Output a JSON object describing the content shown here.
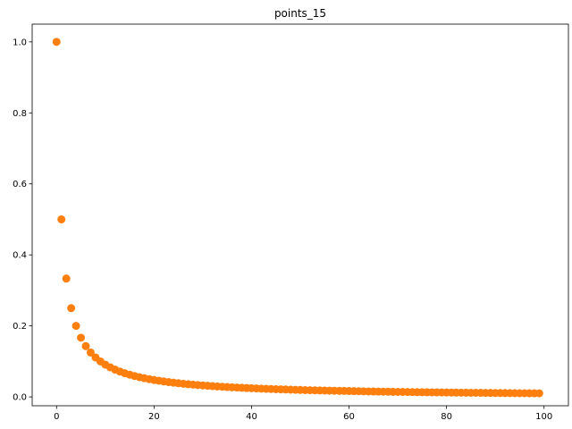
{
  "chart_data": {
    "type": "scatter",
    "title": "points_15",
    "xlabel": "",
    "ylabel": "",
    "xlim": [
      -5,
      105
    ],
    "ylim": [
      -0.025,
      1.05
    ],
    "xticks": [
      0,
      20,
      40,
      60,
      80,
      100
    ],
    "yticks": [
      0.0,
      0.2,
      0.4,
      0.6,
      0.8,
      1.0
    ],
    "xtick_labels": [
      "0",
      "20",
      "40",
      "60",
      "80",
      "100"
    ],
    "ytick_labels": [
      "0.0",
      "0.2",
      "0.4",
      "0.6",
      "0.8",
      "1.0"
    ],
    "grid": false,
    "legend": false,
    "series": [
      {
        "color": "#ff7f0e",
        "x": [
          0,
          1,
          2,
          3,
          4,
          5,
          6,
          7,
          8,
          9,
          10,
          11,
          12,
          13,
          14,
          15,
          16,
          17,
          18,
          19,
          20,
          21,
          22,
          23,
          24,
          25,
          26,
          27,
          28,
          29,
          30,
          31,
          32,
          33,
          34,
          35,
          36,
          37,
          38,
          39,
          40,
          41,
          42,
          43,
          44,
          45,
          46,
          47,
          48,
          49,
          50,
          51,
          52,
          53,
          54,
          55,
          56,
          57,
          58,
          59,
          60,
          61,
          62,
          63,
          64,
          65,
          66,
          67,
          68,
          69,
          70,
          71,
          72,
          73,
          74,
          75,
          76,
          77,
          78,
          79,
          80,
          81,
          82,
          83,
          84,
          85,
          86,
          87,
          88,
          89,
          90,
          91,
          92,
          93,
          94,
          95,
          96,
          97,
          98,
          99
        ],
        "y": [
          1.0,
          0.5,
          0.3333,
          0.25,
          0.2,
          0.1667,
          0.1429,
          0.125,
          0.1111,
          0.1,
          0.0909,
          0.0833,
          0.0769,
          0.0714,
          0.0667,
          0.0625,
          0.0588,
          0.0556,
          0.0526,
          0.05,
          0.0476,
          0.0455,
          0.0435,
          0.0417,
          0.04,
          0.0385,
          0.037,
          0.0357,
          0.0345,
          0.0333,
          0.0323,
          0.0313,
          0.0303,
          0.0294,
          0.0286,
          0.0278,
          0.027,
          0.0263,
          0.0256,
          0.025,
          0.0244,
          0.0238,
          0.0233,
          0.0227,
          0.0222,
          0.0217,
          0.0213,
          0.0208,
          0.0204,
          0.02,
          0.0196,
          0.0192,
          0.0189,
          0.0185,
          0.0182,
          0.0179,
          0.0175,
          0.0172,
          0.0169,
          0.0167,
          0.0164,
          0.0161,
          0.0159,
          0.0156,
          0.0154,
          0.0152,
          0.0149,
          0.0147,
          0.0145,
          0.0143,
          0.0141,
          0.0139,
          0.0137,
          0.0135,
          0.0133,
          0.0132,
          0.013,
          0.0128,
          0.0127,
          0.0125,
          0.0123,
          0.0122,
          0.012,
          0.0119,
          0.0118,
          0.0116,
          0.0115,
          0.0114,
          0.0112,
          0.0111,
          0.011,
          0.0109,
          0.0108,
          0.0106,
          0.0105,
          0.0104,
          0.0103,
          0.0102,
          0.0101,
          0.01
        ]
      }
    ]
  }
}
